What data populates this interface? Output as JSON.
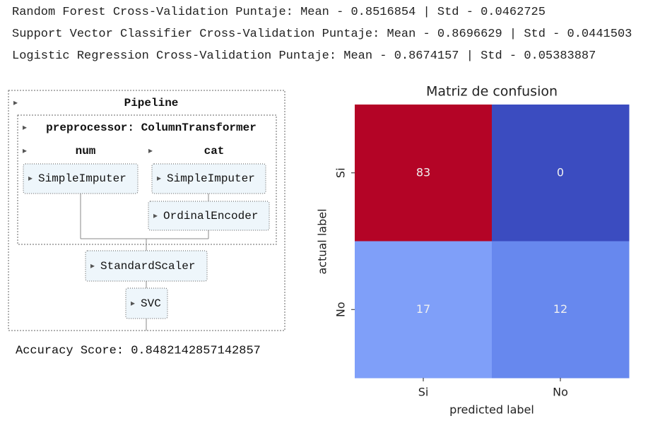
{
  "output_lines": [
    "Random Forest Cross-Validation Puntaje: Mean - 0.8516854 | Std - 0.0462725",
    "Support Vector Classifier Cross-Validation Puntaje: Mean - 0.8696629 | Std - 0.0441503",
    "Logistic Regression Cross-Validation Puntaje: Mean - 0.8674157 | Std - 0.05383887"
  ],
  "pipeline": {
    "title": "Pipeline",
    "preprocessor": "preprocessor: ColumnTransformer",
    "branches": [
      {
        "name": "num",
        "steps": [
          "SimpleImputer"
        ]
      },
      {
        "name": "cat",
        "steps": [
          "SimpleImputer",
          "OrdinalEncoder"
        ]
      }
    ],
    "steps": [
      "StandardScaler",
      "SVC"
    ]
  },
  "accuracy": "Accuracy Score: 0.8482142857142857",
  "chart_data": {
    "type": "heatmap",
    "title": "Matriz de confusion",
    "x_label": "predicted label",
    "y_label": "actual label",
    "categories": [
      "Si",
      "No"
    ],
    "y_categories": [
      "Si",
      "No"
    ],
    "values": [
      [
        83,
        0
      ],
      [
        17,
        12
      ]
    ],
    "colors": [
      [
        "#b40426",
        "#3b4cc0"
      ],
      [
        "#7f9ff9",
        "#6788ee"
      ]
    ],
    "label_color": "#f0f0f0"
  }
}
